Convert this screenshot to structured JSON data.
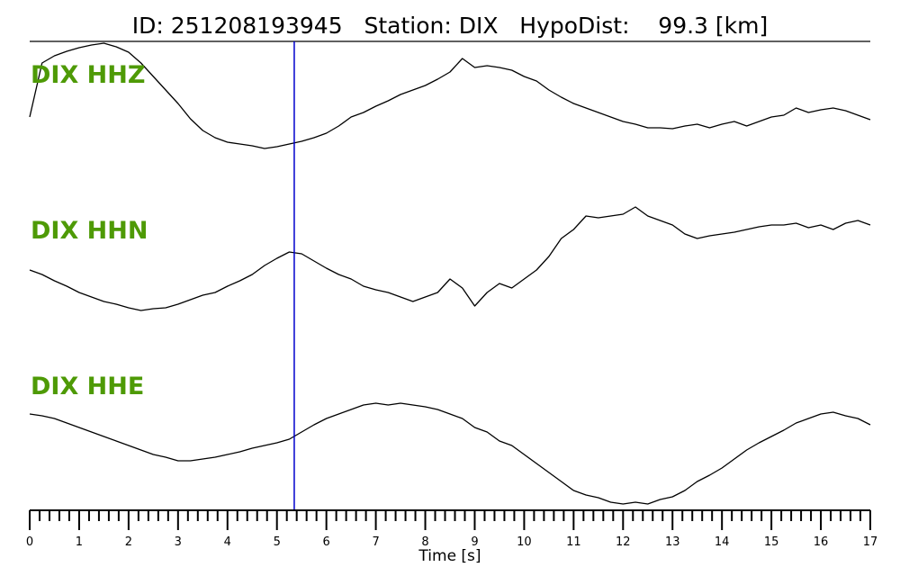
{
  "chart_data": {
    "type": "line",
    "title": "ID: 251208193945   Station: DIX   HypoDist:    99.3 [km]",
    "xlabel": "Time [s]",
    "xlim": [
      0,
      17
    ],
    "xticks": [
      0,
      1,
      2,
      3,
      4,
      5,
      6,
      7,
      8,
      9,
      10,
      11,
      12,
      13,
      14,
      15,
      16,
      17
    ],
    "xminorticks": [
      0.2,
      0.4,
      0.6,
      0.8,
      1.2,
      1.4,
      1.6,
      1.8,
      2.2,
      2.4,
      2.6,
      2.8,
      3.2,
      3.4,
      3.6,
      3.8,
      4.2,
      4.4,
      4.6,
      4.8,
      5.2,
      5.4,
      5.6,
      5.8,
      6.2,
      6.4,
      6.6,
      6.8,
      7.2,
      7.4,
      7.6,
      7.8,
      8.2,
      8.4,
      8.6,
      8.8,
      9.2,
      9.4,
      9.6,
      9.8,
      10.2,
      10.4,
      10.6,
      10.8,
      11.2,
      11.4,
      11.6,
      11.8,
      12.2,
      12.4,
      12.6,
      12.8,
      13.2,
      13.4,
      13.6,
      13.8,
      14.2,
      14.4,
      14.6,
      14.8,
      15.2,
      15.4,
      15.6,
      15.8,
      16.2,
      16.4,
      16.6,
      16.8
    ],
    "ylim": [
      -65,
      65
    ],
    "x": [
      0,
      0.25,
      0.5,
      0.75,
      1,
      1.25,
      1.5,
      1.75,
      2,
      2.25,
      2.5,
      2.75,
      3,
      3.25,
      3.5,
      3.75,
      4,
      4.25,
      4.5,
      4.75,
      5,
      5.25,
      5.5,
      5.75,
      6,
      6.25,
      6.5,
      6.75,
      7,
      7.25,
      7.5,
      7.75,
      8,
      8.25,
      8.5,
      8.75,
      9,
      9.25,
      9.5,
      9.75,
      10,
      10.25,
      10.5,
      10.75,
      11,
      11.25,
      11.5,
      11.75,
      12,
      12.25,
      12.5,
      12.75,
      13,
      13.25,
      13.5,
      13.75,
      14,
      14.25,
      14.5,
      14.75,
      15,
      15.25,
      15.5,
      15.75,
      16,
      16.25,
      16.5,
      16.75,
      17
    ],
    "label_color": "#4e9a06",
    "vlines": [
      {
        "x": 5.35,
        "color": "#0000cc"
      }
    ],
    "series": [
      {
        "name": "DIX HHZ",
        "color": "#000000",
        "values": [
          -25,
          35,
          43,
          48,
          52,
          55,
          57,
          53,
          47,
          35,
          20,
          5,
          -10,
          -27,
          -40,
          -48,
          -53,
          -55,
          -57,
          -60,
          -58,
          -55,
          -52,
          -48,
          -43,
          -35,
          -25,
          -20,
          -13,
          -7,
          0,
          5,
          10,
          17,
          25,
          40,
          30,
          32,
          30,
          27,
          20,
          15,
          5,
          -3,
          -10,
          -15,
          -20,
          -25,
          -30,
          -33,
          -37,
          -37,
          -38,
          -35,
          -33,
          -37,
          -33,
          -30,
          -35,
          -30,
          -25,
          -23,
          -15,
          -20,
          -17,
          -15,
          -18,
          -23,
          -28
        ]
      },
      {
        "name": "DIX HHN",
        "color": "#000000",
        "values": [
          -13,
          -18,
          -25,
          -31,
          -38,
          -43,
          -48,
          -51,
          -55,
          -58,
          -56,
          -55,
          -51,
          -46,
          -41,
          -38,
          -31,
          -25,
          -18,
          -8,
          0,
          7,
          5,
          -3,
          -11,
          -18,
          -23,
          -31,
          -35,
          -38,
          -43,
          -48,
          -43,
          -38,
          -23,
          -33,
          -53,
          -38,
          -28,
          -33,
          -23,
          -13,
          2,
          22,
          32,
          47,
          45,
          47,
          49,
          57,
          47,
          42,
          37,
          27,
          22,
          25,
          27,
          29,
          32,
          35,
          37,
          37,
          39,
          34,
          37,
          32,
          39,
          42,
          37
        ]
      },
      {
        "name": "DIX HHE",
        "color": "#000000",
        "values": [
          40,
          38,
          35,
          30,
          25,
          20,
          15,
          10,
          5,
          0,
          -5,
          -8,
          -12,
          -12,
          -10,
          -8,
          -5,
          -2,
          2,
          5,
          8,
          12,
          20,
          28,
          35,
          40,
          45,
          50,
          52,
          50,
          52,
          50,
          48,
          45,
          40,
          35,
          25,
          20,
          10,
          5,
          -5,
          -15,
          -25,
          -35,
          -45,
          -50,
          -53,
          -58,
          -60,
          -58,
          -60,
          -55,
          -52,
          -45,
          -35,
          -28,
          -20,
          -10,
          0,
          8,
          15,
          22,
          30,
          35,
          40,
          42,
          38,
          35,
          28
        ]
      }
    ]
  }
}
